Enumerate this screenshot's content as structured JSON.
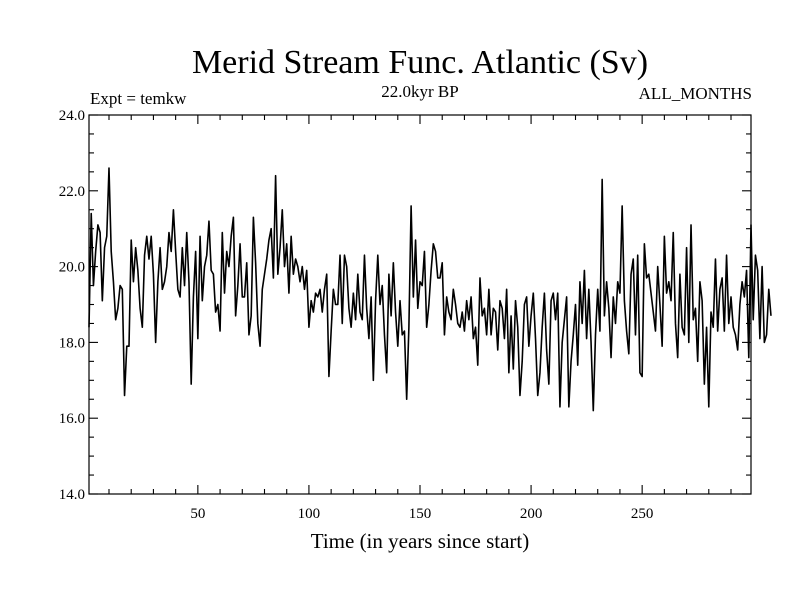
{
  "chart_data": {
    "type": "line",
    "title": "Merid Stream Func. Atlantic (Sv)",
    "subtitle_left": "Expt = temkw",
    "subtitle_center": "22.0kyr BP",
    "subtitle_right": "ALL_MONTHS",
    "xlabel": "Time (in years since start)",
    "ylabel": "",
    "xlim": [
      1,
      299
    ],
    "ylim": [
      14.0,
      24.0
    ],
    "xticks": [
      50,
      100,
      150,
      200,
      250
    ],
    "xtick_labels": [
      "50",
      "100",
      "150",
      "200",
      "250"
    ],
    "yticks": [
      14,
      16,
      18,
      20,
      22,
      24
    ],
    "ytick_labels": [
      "14.0",
      "16.0",
      "18.0",
      "20.0",
      "22.0",
      "24.0"
    ],
    "grid": false,
    "line_color": "#000000",
    "series": [
      {
        "name": "Merid Stream Func. Atlantic",
        "x_start": 1,
        "x_step": 1,
        "values": [
          18.4,
          21.4,
          19.5,
          20.4,
          21.1,
          20.9,
          19.1,
          20.5,
          20.8,
          22.6,
          20.4,
          19.6,
          18.6,
          18.9,
          19.5,
          19.4,
          16.6,
          17.9,
          17.9,
          20.7,
          19.6,
          20.5,
          19.9,
          18.9,
          18.4,
          20.3,
          20.8,
          20.2,
          20.8,
          19.8,
          18.0,
          19.6,
          20.5,
          19.4,
          19.6,
          20.0,
          20.9,
          20.4,
          21.5,
          20.4,
          19.4,
          19.2,
          20.5,
          19.5,
          20.9,
          19.6,
          16.9,
          19.2,
          20.4,
          18.1,
          20.8,
          19.1,
          20.0,
          20.3,
          21.2,
          19.9,
          19.8,
          18.8,
          19.0,
          18.3,
          20.9,
          19.3,
          20.4,
          20.0,
          20.8,
          21.3,
          18.7,
          19.5,
          20.6,
          19.2,
          19.2,
          20.1,
          18.2,
          18.7,
          21.3,
          20.1,
          18.5,
          17.9,
          19.4,
          19.8,
          20.2,
          20.7,
          21.0,
          19.7,
          22.4,
          19.8,
          20.5,
          21.5,
          20.0,
          20.6,
          19.3,
          20.8,
          19.8,
          20.2,
          20.0,
          19.6,
          20.0,
          19.4,
          19.9,
          18.4,
          19.1,
          18.8,
          19.3,
          19.2,
          19.4,
          18.8,
          19.4,
          19.8,
          17.1,
          18.3,
          19.4,
          19.0,
          19.0,
          20.3,
          18.5,
          20.3,
          20.0,
          18.9,
          18.4,
          19.3,
          18.6,
          19.8,
          18.8,
          18.6,
          20.3,
          18.9,
          18.1,
          19.2,
          17.0,
          19.1,
          20.3,
          19.0,
          19.5,
          18.2,
          17.2,
          19.8,
          18.7,
          20.1,
          18.8,
          17.9,
          19.1,
          18.2,
          18.3,
          16.5,
          18.4,
          21.6,
          19.2,
          20.7,
          18.9,
          19.6,
          19.5,
          20.4,
          18.4,
          19.0,
          19.9,
          20.6,
          20.4,
          19.7,
          19.7,
          20.1,
          18.2,
          19.2,
          18.8,
          18.6,
          19.4,
          19.0,
          18.5,
          18.4,
          18.8,
          18.3,
          19.1,
          18.6,
          19.2,
          18.1,
          18.4,
          17.4,
          19.7,
          18.7,
          18.9,
          18.2,
          19.4,
          18.2,
          18.9,
          18.8,
          17.8,
          19.1,
          18.9,
          18.1,
          19.4,
          17.2,
          18.7,
          17.3,
          19.1,
          18.4,
          16.6,
          17.5,
          19.0,
          19.2,
          17.9,
          18.7,
          19.3,
          18.1,
          16.6,
          17.2,
          18.4,
          19.3,
          17.8,
          16.9,
          19.1,
          19.3,
          18.6,
          19.3,
          16.3,
          18.0,
          18.6,
          19.2,
          16.3,
          17.5,
          18.2,
          19.0,
          17.4,
          19.6,
          18.5,
          19.9,
          18.1,
          19.4,
          18.0,
          16.2,
          18.2,
          19.4,
          18.3,
          22.3,
          18.7,
          19.6,
          18.9,
          17.6,
          19.2,
          18.5,
          19.6,
          19.3,
          21.6,
          19.1,
          18.3,
          17.7,
          19.8,
          20.2,
          18.2,
          20.3,
          17.2,
          17.1,
          20.6,
          19.7,
          19.8,
          19.3,
          18.8,
          18.3,
          20.0,
          19.0,
          17.9,
          20.8,
          19.3,
          19.6,
          19.1,
          20.9,
          18.5,
          17.6,
          19.8,
          18.4,
          18.2,
          20.5,
          18.0,
          21.1,
          18.6,
          18.9,
          17.5,
          19.6,
          19.1,
          16.9,
          18.4,
          16.3,
          18.8,
          18.4,
          20.2,
          18.3,
          19.4,
          19.7,
          18.3,
          20.3,
          18.5,
          19.2,
          18.4,
          18.2,
          17.8,
          19.0,
          19.6,
          19.2,
          19.9,
          17.6,
          21.1,
          18.6,
          20.3,
          19.9,
          18.1,
          20.0,
          18.0,
          18.2,
          19.4,
          18.7
        ]
      }
    ]
  }
}
